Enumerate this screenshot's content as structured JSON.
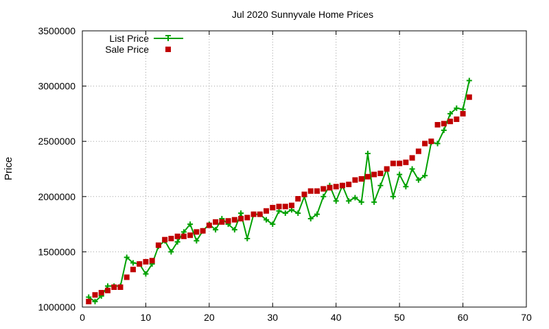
{
  "chart_data": {
    "type": "line",
    "title": "Jul 2020 Sunnyvale Home Prices",
    "xlabel": "",
    "ylabel": "Price",
    "xlim": [
      0,
      70
    ],
    "ylim": [
      1000000,
      3500000
    ],
    "xticks": [
      0,
      10,
      20,
      30,
      40,
      50,
      60,
      70
    ],
    "yticks": [
      1000000,
      1500000,
      2000000,
      2500000,
      3000000,
      3500000
    ],
    "grid": true,
    "legend_position": "top-left",
    "series": [
      {
        "name": "List Price",
        "style": "line-plus",
        "color": "#00a000",
        "x": [
          1,
          2,
          3,
          4,
          5,
          6,
          7,
          8,
          9,
          10,
          11,
          12,
          13,
          14,
          15,
          16,
          17,
          18,
          19,
          20,
          21,
          22,
          23,
          24,
          25,
          26,
          27,
          28,
          29,
          30,
          31,
          32,
          33,
          34,
          35,
          36,
          37,
          38,
          39,
          40,
          41,
          42,
          43,
          44,
          45,
          46,
          47,
          48,
          49,
          50,
          51,
          52,
          53,
          54,
          55,
          56,
          57,
          58,
          59,
          60,
          61
        ],
        "y": [
          1090000,
          1050000,
          1100000,
          1190000,
          1190000,
          1190000,
          1450000,
          1400000,
          1390000,
          1300000,
          1390000,
          1550000,
          1600000,
          1500000,
          1590000,
          1680000,
          1750000,
          1600000,
          1690000,
          1750000,
          1700000,
          1800000,
          1750000,
          1700000,
          1850000,
          1620000,
          1840000,
          1840000,
          1790000,
          1750000,
          1870000,
          1850000,
          1880000,
          1850000,
          2000000,
          1800000,
          1840000,
          2000000,
          2100000,
          1960000,
          2100000,
          1960000,
          1990000,
          1950000,
          2390000,
          1950000,
          2100000,
          2250000,
          2000000,
          2200000,
          2090000,
          2250000,
          2150000,
          2190000,
          2490000,
          2480000,
          2600000,
          2750000,
          2800000,
          2790000,
          3050000
        ]
      },
      {
        "name": "Sale Price",
        "style": "square-points",
        "color": "#c00000",
        "x": [
          1,
          2,
          3,
          4,
          5,
          6,
          7,
          8,
          9,
          10,
          11,
          12,
          13,
          14,
          15,
          16,
          17,
          18,
          19,
          20,
          21,
          22,
          23,
          24,
          25,
          26,
          27,
          28,
          29,
          30,
          31,
          32,
          33,
          34,
          35,
          36,
          37,
          38,
          39,
          40,
          41,
          42,
          43,
          44,
          45,
          46,
          47,
          48,
          49,
          50,
          51,
          52,
          53,
          54,
          55,
          56,
          57,
          58,
          59,
          60,
          61
        ],
        "y": [
          1050000,
          1110000,
          1130000,
          1150000,
          1180000,
          1180000,
          1270000,
          1340000,
          1390000,
          1410000,
          1420000,
          1560000,
          1610000,
          1620000,
          1640000,
          1640000,
          1650000,
          1680000,
          1690000,
          1740000,
          1770000,
          1770000,
          1780000,
          1790000,
          1800000,
          1810000,
          1840000,
          1840000,
          1870000,
          1900000,
          1910000,
          1910000,
          1920000,
          1980000,
          2020000,
          2050000,
          2050000,
          2070000,
          2080000,
          2090000,
          2100000,
          2110000,
          2150000,
          2160000,
          2180000,
          2200000,
          2210000,
          2250000,
          2300000,
          2300000,
          2310000,
          2350000,
          2410000,
          2480000,
          2500000,
          2650000,
          2660000,
          2680000,
          2700000,
          2750000,
          2900000
        ]
      }
    ]
  }
}
